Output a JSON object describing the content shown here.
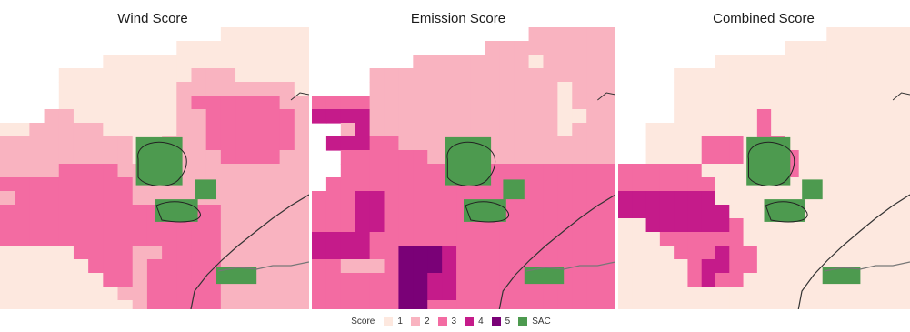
{
  "panels": [
    {
      "title": "Wind Score"
    },
    {
      "title": "Emission Score"
    },
    {
      "title": "Combined Score"
    }
  ],
  "legend": {
    "title": "Score",
    "items": [
      {
        "label": "1",
        "color": "#fde8df"
      },
      {
        "label": "2",
        "color": "#f9b3c0"
      },
      {
        "label": "3",
        "color": "#f36ba2"
      },
      {
        "label": "4",
        "color": "#c51b8a"
      },
      {
        "label": "5",
        "color": "#7a0177"
      },
      {
        "label": "SAC",
        "color": "#4d9a4f"
      }
    ]
  },
  "chart_data": {
    "type": "heatmap",
    "score_scale": [
      1,
      2,
      3,
      4,
      5
    ],
    "overlay": "SAC",
    "grids": {
      "wind": [
        "000000000000000111111",
        "000000000000111111111",
        "000000011111111111111",
        "000011111111111111111",
        "000011111111222222221",
        "000011111111222222222",
        "000011111111223333332",
        "002211111111223333332",
        "002222111112223333332",
        "002222221112222333322",
        "002222222222222222222",
        "022222222222222222222",
        "233333333222222222222",
        "333333333333333222222",
        "333333333333333222222",
        "333333333333333222222",
        "333333333333333222222",
        "333333333333333222222",
        "333333333333333222222",
        "333333333333333222222",
        "333333333333333222222"
      ],
      "emission": [
        "000000000000000222222",
        "000000000000222222222",
        "000000022222222222222",
        "000022222222222222222",
        "000022222222222222222",
        "000022222222222222222",
        "000022222222222222222",
        "003322222222222222222",
        "003333222222222222222",
        "003333332222222222222",
        "003333333333333333333",
        "033333333333333333333",
        "333333333333333333333",
        "333333333333333333333",
        "333333333333333333333",
        "333333333333333333333",
        "333333333333333333333",
        "333333333333333333333",
        "333333333333333333333",
        "333333333333333333333",
        "333333333333333333333"
      ],
      "combined": [
        "000000000000000111111",
        "000000000000111111111",
        "000000011111111111111",
        "000011111111111111111",
        "000011111111111111111",
        "000011111111111111111",
        "000011111111111111111",
        "001111111111111111111",
        "001111111111111111111",
        "001111111111111111111",
        "001111111111111111111",
        "011111111111111111111",
        "111111111111111111111",
        "111111111111111111111",
        "111111111111111111111",
        "111111111111111111111",
        "111111111111111111111",
        "111111111111111111111",
        "111111111111111111111",
        "111111111111111111111",
        "111111111111111111111"
      ]
    },
    "cell_overrides": {
      "wind": [
        [
          0,
          15,
          1
        ],
        [
          0,
          16,
          1
        ],
        [
          0,
          17,
          1
        ],
        [
          0,
          18,
          1
        ],
        [
          0,
          19,
          1
        ],
        [
          0,
          20,
          1
        ],
        [
          3,
          12,
          1
        ],
        [
          3,
          13,
          2
        ],
        [
          3,
          14,
          2
        ],
        [
          3,
          15,
          2
        ],
        [
          3,
          16,
          1
        ],
        [
          3,
          17,
          1
        ],
        [
          3,
          18,
          1
        ],
        [
          3,
          19,
          1
        ],
        [
          3,
          20,
          1
        ],
        [
          4,
          12,
          2
        ],
        [
          4,
          13,
          2
        ],
        [
          4,
          14,
          2
        ],
        [
          4,
          15,
          2
        ],
        [
          4,
          16,
          2
        ],
        [
          4,
          17,
          2
        ],
        [
          4,
          18,
          2
        ],
        [
          4,
          19,
          2
        ],
        [
          4,
          20,
          1
        ],
        [
          5,
          12,
          2
        ],
        [
          5,
          13,
          3
        ],
        [
          5,
          14,
          3
        ],
        [
          5,
          15,
          3
        ],
        [
          5,
          16,
          3
        ],
        [
          5,
          17,
          3
        ],
        [
          5,
          18,
          3
        ],
        [
          5,
          19,
          2
        ],
        [
          5,
          20,
          2
        ],
        [
          6,
          3,
          2
        ],
        [
          6,
          4,
          2
        ],
        [
          6,
          5,
          1
        ],
        [
          6,
          6,
          1
        ],
        [
          6,
          7,
          1
        ],
        [
          6,
          8,
          1
        ],
        [
          6,
          9,
          1
        ],
        [
          6,
          10,
          1
        ],
        [
          6,
          11,
          1
        ],
        [
          7,
          0,
          1
        ],
        [
          7,
          1,
          1
        ],
        [
          7,
          2,
          2
        ],
        [
          7,
          3,
          2
        ],
        [
          7,
          4,
          2
        ],
        [
          7,
          5,
          2
        ],
        [
          7,
          6,
          2
        ],
        [
          7,
          7,
          1
        ],
        [
          8,
          0,
          2
        ],
        [
          8,
          1,
          2
        ],
        [
          8,
          2,
          2
        ],
        [
          8,
          3,
          2
        ],
        [
          8,
          4,
          2
        ],
        [
          8,
          5,
          2
        ],
        [
          8,
          6,
          2
        ],
        [
          8,
          7,
          2
        ],
        [
          8,
          8,
          2
        ],
        [
          9,
          0,
          2
        ],
        [
          9,
          1,
          2
        ],
        [
          9,
          2,
          2
        ],
        [
          9,
          3,
          2
        ],
        [
          9,
          4,
          2
        ],
        [
          9,
          5,
          2
        ],
        [
          9,
          6,
          2
        ],
        [
          9,
          7,
          2
        ],
        [
          9,
          8,
          2
        ],
        [
          10,
          0,
          2
        ],
        [
          10,
          1,
          2
        ],
        [
          10,
          2,
          2
        ],
        [
          10,
          3,
          2
        ],
        [
          10,
          4,
          3
        ],
        [
          10,
          5,
          3
        ],
        [
          10,
          6,
          3
        ],
        [
          10,
          7,
          3
        ],
        [
          10,
          8,
          2
        ],
        [
          11,
          0,
          3
        ],
        [
          11,
          1,
          3
        ],
        [
          11,
          2,
          3
        ],
        [
          11,
          3,
          3
        ],
        [
          11,
          4,
          3
        ],
        [
          11,
          5,
          3
        ],
        [
          11,
          6,
          3
        ],
        [
          11,
          7,
          3
        ],
        [
          11,
          8,
          3
        ],
        [
          16,
          0,
          1
        ],
        [
          16,
          1,
          1
        ],
        [
          16,
          2,
          1
        ],
        [
          16,
          3,
          1
        ],
        [
          16,
          4,
          1
        ],
        [
          16,
          5,
          3
        ],
        [
          16,
          6,
          3
        ],
        [
          16,
          7,
          3
        ],
        [
          16,
          8,
          3
        ],
        [
          16,
          9,
          2
        ],
        [
          16,
          10,
          2
        ],
        [
          17,
          0,
          1
        ],
        [
          17,
          1,
          1
        ],
        [
          17,
          2,
          1
        ],
        [
          17,
          3,
          1
        ],
        [
          17,
          4,
          1
        ],
        [
          17,
          5,
          1
        ],
        [
          17,
          6,
          3
        ],
        [
          17,
          7,
          3
        ],
        [
          17,
          8,
          3
        ],
        [
          17,
          9,
          2
        ],
        [
          18,
          0,
          1
        ],
        [
          18,
          1,
          1
        ],
        [
          18,
          2,
          1
        ],
        [
          18,
          3,
          1
        ],
        [
          18,
          4,
          1
        ],
        [
          18,
          5,
          1
        ],
        [
          18,
          6,
          1
        ],
        [
          18,
          7,
          3
        ],
        [
          18,
          8,
          3
        ],
        [
          18,
          9,
          2
        ],
        [
          19,
          0,
          1
        ],
        [
          19,
          1,
          1
        ],
        [
          19,
          2,
          1
        ],
        [
          19,
          3,
          1
        ],
        [
          19,
          4,
          1
        ],
        [
          19,
          5,
          1
        ],
        [
          19,
          6,
          1
        ],
        [
          19,
          7,
          1
        ],
        [
          19,
          8,
          2
        ],
        [
          19,
          9,
          2
        ],
        [
          20,
          0,
          1
        ],
        [
          20,
          1,
          1
        ],
        [
          20,
          2,
          1
        ],
        [
          20,
          3,
          1
        ],
        [
          20,
          4,
          1
        ],
        [
          20,
          5,
          1
        ],
        [
          20,
          6,
          1
        ],
        [
          20,
          7,
          1
        ],
        [
          20,
          8,
          1
        ],
        [
          20,
          9,
          2
        ]
      ],
      "emission": [
        [
          0,
          15,
          2
        ],
        [
          2,
          15,
          1
        ],
        [
          2,
          16,
          2
        ],
        [
          4,
          17,
          1
        ],
        [
          5,
          17,
          1
        ],
        [
          6,
          17,
          1
        ],
        [
          6,
          18,
          1
        ],
        [
          7,
          17,
          1
        ],
        [
          5,
          0,
          3
        ],
        [
          5,
          1,
          3
        ],
        [
          5,
          2,
          3
        ],
        [
          5,
          3,
          3
        ],
        [
          6,
          0,
          4
        ],
        [
          6,
          1,
          4
        ],
        [
          6,
          2,
          4
        ],
        [
          6,
          3,
          4
        ],
        [
          7,
          2,
          2
        ],
        [
          7,
          3,
          4
        ],
        [
          8,
          1,
          4
        ],
        [
          8,
          2,
          4
        ],
        [
          8,
          3,
          4
        ],
        [
          12,
          3,
          4
        ],
        [
          12,
          4,
          4
        ],
        [
          13,
          3,
          4
        ],
        [
          13,
          4,
          4
        ],
        [
          14,
          3,
          4
        ],
        [
          14,
          4,
          4
        ],
        [
          15,
          0,
          4
        ],
        [
          15,
          1,
          4
        ],
        [
          15,
          2,
          4
        ],
        [
          15,
          3,
          4
        ],
        [
          16,
          0,
          4
        ],
        [
          16,
          1,
          4
        ],
        [
          16,
          2,
          4
        ],
        [
          16,
          3,
          4
        ],
        [
          17,
          0,
          3
        ],
        [
          17,
          1,
          3
        ],
        [
          17,
          2,
          2
        ],
        [
          17,
          3,
          2
        ],
        [
          17,
          4,
          2
        ],
        [
          16,
          6,
          5
        ],
        [
          16,
          7,
          5
        ],
        [
          16,
          8,
          5
        ],
        [
          17,
          6,
          5
        ],
        [
          17,
          7,
          5
        ],
        [
          17,
          8,
          5
        ],
        [
          18,
          6,
          5
        ],
        [
          18,
          7,
          5
        ],
        [
          19,
          6,
          5
        ],
        [
          19,
          7,
          5
        ],
        [
          20,
          6,
          5
        ],
        [
          20,
          7,
          5
        ],
        [
          16,
          9,
          4
        ],
        [
          17,
          9,
          4
        ],
        [
          18,
          8,
          4
        ],
        [
          18,
          9,
          4
        ],
        [
          19,
          8,
          4
        ],
        [
          19,
          9,
          4
        ],
        [
          20,
          8,
          3
        ],
        [
          20,
          9,
          3
        ]
      ],
      "combined": [
        [
          10,
          0,
          3
        ],
        [
          10,
          1,
          3
        ],
        [
          10,
          2,
          3
        ],
        [
          10,
          3,
          3
        ],
        [
          10,
          4,
          3
        ],
        [
          10,
          5,
          3
        ],
        [
          11,
          0,
          3
        ],
        [
          11,
          1,
          3
        ],
        [
          11,
          2,
          3
        ],
        [
          11,
          3,
          3
        ],
        [
          11,
          4,
          3
        ],
        [
          11,
          5,
          3
        ],
        [
          11,
          6,
          3
        ],
        [
          12,
          0,
          4
        ],
        [
          12,
          1,
          4
        ],
        [
          12,
          2,
          4
        ],
        [
          12,
          3,
          4
        ],
        [
          12,
          4,
          4
        ],
        [
          12,
          5,
          4
        ],
        [
          12,
          6,
          4
        ],
        [
          13,
          0,
          4
        ],
        [
          13,
          1,
          4
        ],
        [
          13,
          2,
          4
        ],
        [
          13,
          3,
          4
        ],
        [
          13,
          4,
          4
        ],
        [
          13,
          5,
          4
        ],
        [
          13,
          6,
          4
        ],
        [
          13,
          7,
          4
        ],
        [
          14,
          2,
          4
        ],
        [
          14,
          3,
          4
        ],
        [
          14,
          4,
          4
        ],
        [
          14,
          5,
          4
        ],
        [
          14,
          6,
          4
        ],
        [
          14,
          7,
          4
        ],
        [
          14,
          8,
          3
        ],
        [
          15,
          3,
          3
        ],
        [
          15,
          4,
          3
        ],
        [
          15,
          5,
          3
        ],
        [
          15,
          6,
          3
        ],
        [
          15,
          7,
          3
        ],
        [
          15,
          8,
          3
        ],
        [
          16,
          4,
          3
        ],
        [
          16,
          5,
          3
        ],
        [
          16,
          6,
          3
        ],
        [
          16,
          7,
          4
        ],
        [
          16,
          8,
          3
        ],
        [
          16,
          9,
          3
        ],
        [
          17,
          5,
          3
        ],
        [
          17,
          6,
          4
        ],
        [
          17,
          7,
          4
        ],
        [
          17,
          8,
          3
        ],
        [
          17,
          9,
          3
        ],
        [
          18,
          5,
          3
        ],
        [
          18,
          6,
          4
        ],
        [
          18,
          7,
          3
        ],
        [
          18,
          8,
          3
        ],
        [
          8,
          6,
          3
        ],
        [
          8,
          7,
          3
        ],
        [
          8,
          8,
          3
        ],
        [
          9,
          6,
          3
        ],
        [
          9,
          7,
          3
        ],
        [
          9,
          8,
          3
        ],
        [
          6,
          10,
          3
        ],
        [
          7,
          10,
          3
        ],
        [
          8,
          10,
          3
        ],
        [
          8,
          11,
          3
        ],
        [
          9,
          11,
          3
        ],
        [
          9,
          12,
          3
        ],
        [
          10,
          12,
          3
        ]
      ]
    }
  }
}
